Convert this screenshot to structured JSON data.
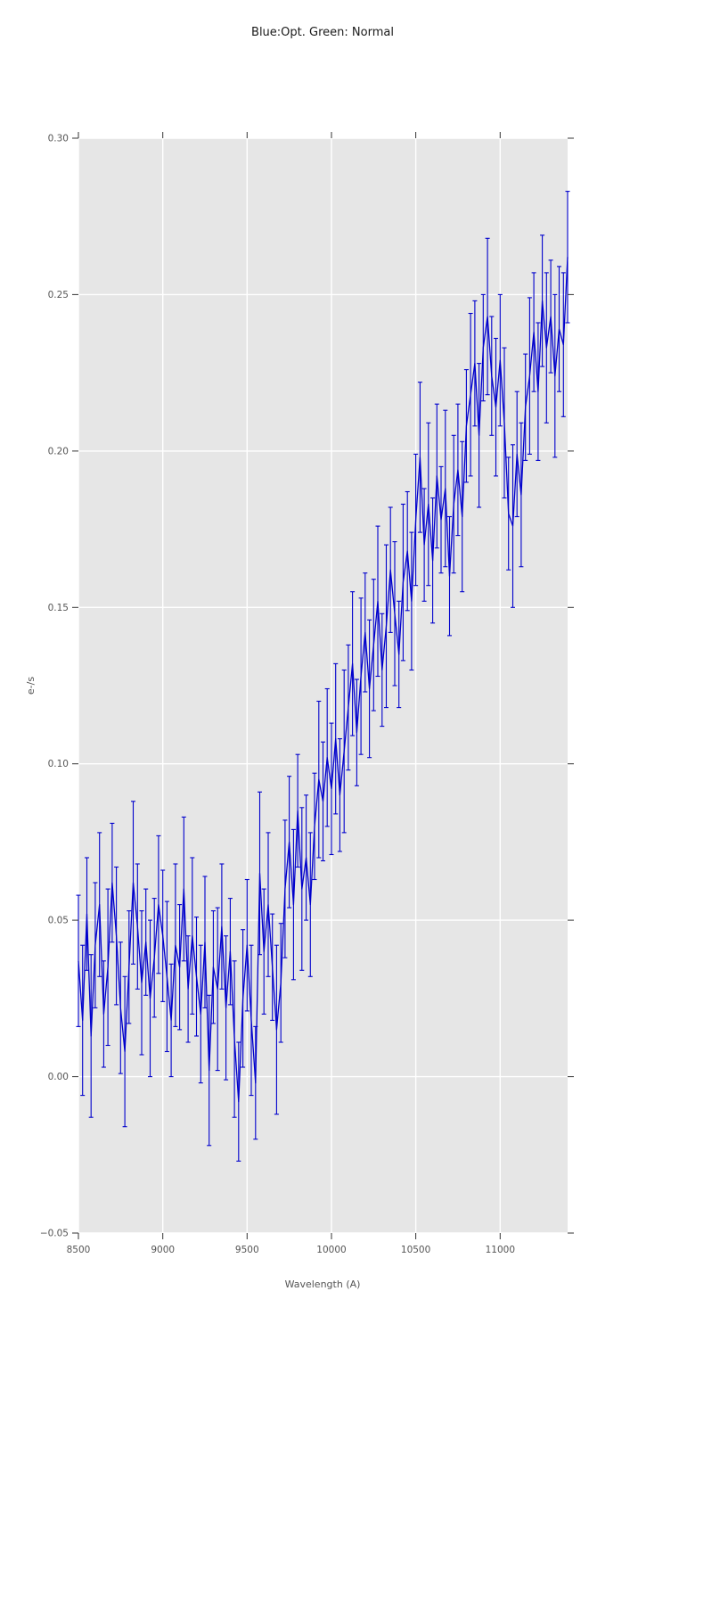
{
  "chart_data": {
    "type": "line",
    "title": "Blue:Opt. Green: Normal",
    "xlabel": "Wavelength (A)",
    "ylabel": "e-/s",
    "axes": {
      "xlim": [
        8500,
        11400
      ],
      "ylim": [
        -0.05,
        0.3
      ],
      "xticks": [
        8500,
        9000,
        9500,
        10000,
        10500,
        11000
      ],
      "xtick_labels": [
        "8500",
        "9000",
        "9500",
        "10000",
        "10500",
        "11000"
      ],
      "yticks": [
        -0.05,
        0.0,
        0.05,
        0.1,
        0.15,
        0.2,
        0.25,
        0.3
      ],
      "ytick_labels": [
        "−0.05",
        "0.00",
        "0.05",
        "0.10",
        "0.15",
        "0.20",
        "0.25",
        "0.30"
      ],
      "grid": true,
      "legend": false
    },
    "colors": {
      "line": "#0000cc",
      "plot_bg": "#e6e6e6",
      "grid": "#ffffff",
      "tick": "#333333",
      "tick_label": "#555555",
      "title": "#1a1a1a"
    },
    "series": [
      {
        "marker": "none",
        "errorbars": true,
        "x_start": 8500,
        "x_step": 25,
        "y": [
          0.037,
          0.018,
          0.052,
          0.013,
          0.042,
          0.055,
          0.02,
          0.035,
          0.062,
          0.045,
          0.022,
          0.008,
          0.035,
          0.062,
          0.048,
          0.03,
          0.043,
          0.025,
          0.038,
          0.055,
          0.045,
          0.032,
          0.018,
          0.042,
          0.035,
          0.06,
          0.028,
          0.045,
          0.032,
          0.02,
          0.043,
          0.002,
          0.035,
          0.028,
          0.048,
          0.022,
          0.04,
          0.012,
          -0.008,
          0.025,
          0.042,
          0.018,
          -0.002,
          0.065,
          0.04,
          0.055,
          0.035,
          0.015,
          0.03,
          0.06,
          0.075,
          0.055,
          0.085,
          0.06,
          0.07,
          0.055,
          0.08,
          0.095,
          0.088,
          0.102,
          0.092,
          0.108,
          0.09,
          0.104,
          0.118,
          0.132,
          0.11,
          0.128,
          0.142,
          0.124,
          0.138,
          0.152,
          0.13,
          0.144,
          0.162,
          0.148,
          0.135,
          0.158,
          0.168,
          0.152,
          0.178,
          0.198,
          0.17,
          0.183,
          0.165,
          0.192,
          0.178,
          0.188,
          0.16,
          0.183,
          0.194,
          0.179,
          0.208,
          0.218,
          0.228,
          0.205,
          0.233,
          0.243,
          0.224,
          0.214,
          0.229,
          0.209,
          0.18,
          0.176,
          0.199,
          0.186,
          0.214,
          0.224,
          0.238,
          0.219,
          0.248,
          0.233,
          0.243,
          0.224,
          0.239,
          0.234,
          0.262
        ],
        "yerr": [
          0.021,
          0.024,
          0.018,
          0.026,
          0.02,
          0.023,
          0.017,
          0.025,
          0.019,
          0.022,
          0.021,
          0.024,
          0.018,
          0.026,
          0.02,
          0.023,
          0.017,
          0.025,
          0.019,
          0.022,
          0.021,
          0.024,
          0.018,
          0.026,
          0.02,
          0.023,
          0.017,
          0.025,
          0.019,
          0.022,
          0.021,
          0.024,
          0.018,
          0.026,
          0.02,
          0.023,
          0.017,
          0.025,
          0.019,
          0.022,
          0.021,
          0.024,
          0.018,
          0.026,
          0.02,
          0.023,
          0.017,
          0.027,
          0.019,
          0.022,
          0.021,
          0.024,
          0.018,
          0.026,
          0.02,
          0.023,
          0.017,
          0.025,
          0.019,
          0.022,
          0.021,
          0.024,
          0.018,
          0.026,
          0.02,
          0.023,
          0.017,
          0.025,
          0.019,
          0.022,
          0.021,
          0.024,
          0.018,
          0.026,
          0.02,
          0.023,
          0.017,
          0.025,
          0.019,
          0.022,
          0.021,
          0.024,
          0.018,
          0.026,
          0.02,
          0.023,
          0.017,
          0.025,
          0.019,
          0.022,
          0.021,
          0.024,
          0.018,
          0.026,
          0.02,
          0.023,
          0.017,
          0.025,
          0.019,
          0.022,
          0.021,
          0.024,
          0.018,
          0.026,
          0.02,
          0.023,
          0.017,
          0.025,
          0.019,
          0.022,
          0.021,
          0.024,
          0.018,
          0.026,
          0.02,
          0.023,
          0.021
        ]
      }
    ]
  }
}
